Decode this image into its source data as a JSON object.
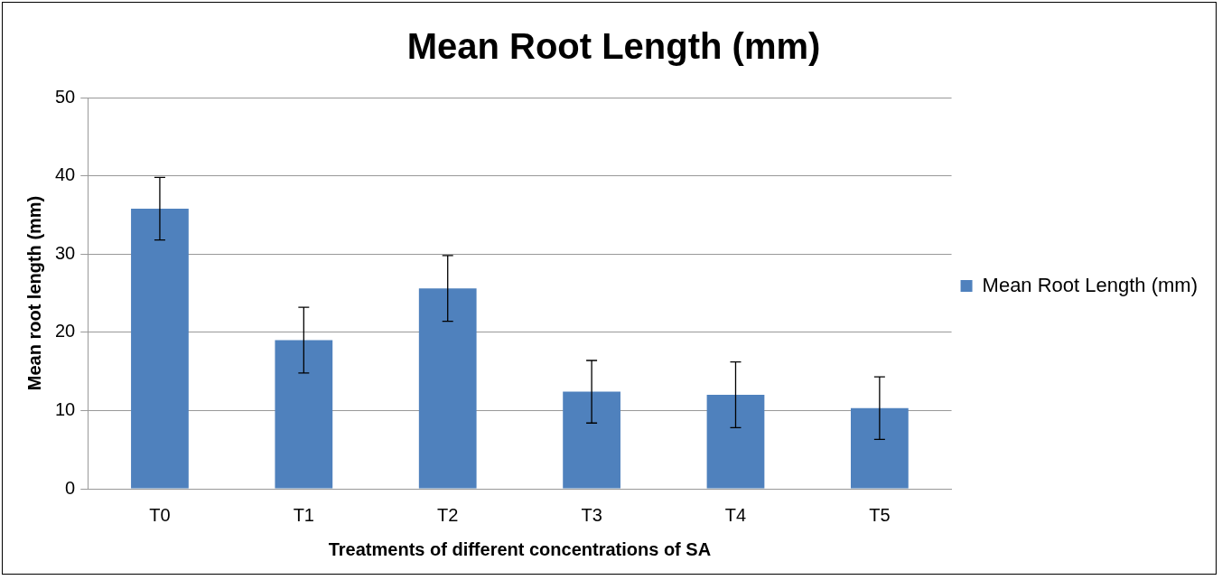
{
  "chart_data": {
    "type": "bar",
    "title": "Mean Root Length (mm)",
    "xlabel": "Treatments of different concentrations of SA",
    "ylabel": "Mean root length (mm)",
    "categories": [
      "T0",
      "T1",
      "T2",
      "T3",
      "T4",
      "T5"
    ],
    "series": [
      {
        "name": "Mean Root Length (mm)",
        "color": "#4f81bd",
        "values": [
          35.8,
          19.0,
          25.6,
          12.4,
          12.0,
          10.3
        ],
        "errors": [
          4.0,
          4.2,
          4.2,
          4.0,
          4.2,
          4.0
        ]
      }
    ],
    "ylim": [
      0,
      50
    ],
    "yticks": [
      0,
      10,
      20,
      30,
      40,
      50
    ],
    "grid": "y",
    "legend": "right"
  }
}
